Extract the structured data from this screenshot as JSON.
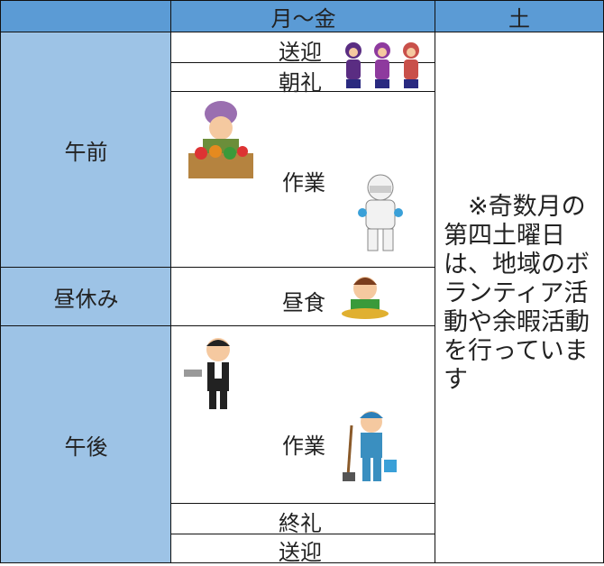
{
  "header": {
    "weekday": "月～金",
    "saturday": "土"
  },
  "periods": [
    {
      "label": "午前",
      "items": [
        "送迎",
        "朝礼",
        "作業"
      ]
    },
    {
      "label": "昼休み",
      "items": [
        "昼食"
      ]
    },
    {
      "label": "午後",
      "items": [
        "作業",
        "終礼",
        "送迎"
      ]
    }
  ],
  "saturday_note": "※奇数月の第四土曜日は、地域のボランティア活動や余暇活動を行っています"
}
